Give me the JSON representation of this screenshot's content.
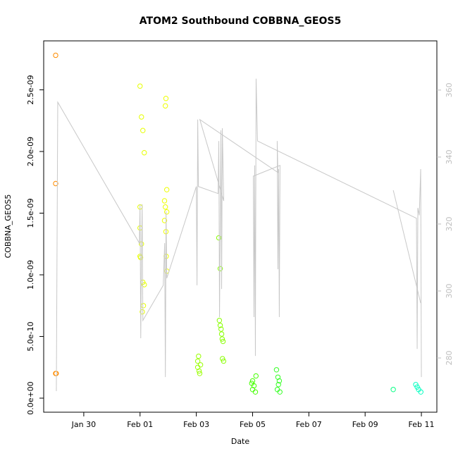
{
  "chart_data": {
    "type": "scatter",
    "title": "ATOM2 Southbound COBBNA_GEOS5",
    "x_label": "Date",
    "y_label": "COBBNA_GEOS5",
    "xlim": [
      28.575,
      42.55
    ],
    "xticks": [
      {
        "value": 30,
        "label": "Jan 30"
      },
      {
        "value": 32,
        "label": "Feb 01"
      },
      {
        "value": 34,
        "label": "Feb 03"
      },
      {
        "value": 36,
        "label": "Feb 05"
      },
      {
        "value": 38,
        "label": "Feb 07"
      },
      {
        "value": 40,
        "label": "Feb 09"
      },
      {
        "value": 42,
        "label": "Feb 11"
      }
    ],
    "ylim": [
      -1.14e-10,
      2.897e-09
    ],
    "yticks": [
      {
        "value": 0,
        "label": "0.0e+00"
      },
      {
        "value": 5e-10,
        "label": "5.0e-10"
      },
      {
        "value": 1e-09,
        "label": "1.0e-09"
      },
      {
        "value": 1.5e-09,
        "label": "1.5e-09"
      },
      {
        "value": 2e-09,
        "label": "2.0e-09"
      },
      {
        "value": 2.5e-09,
        "label": "2.5e-09"
      }
    ],
    "y2lim": [
      263.8,
      374.7
    ],
    "y2ticks": [
      280,
      300,
      320,
      340,
      360
    ],
    "series": [
      {
        "color": "#ff8c00",
        "x": [
          29.0,
          29.0,
          29.0,
          29.02
        ],
        "values": [
          2.78e-09,
          1.74e-09,
          2e-10,
          2e-10
        ]
      },
      {
        "color": "#e6ff00",
        "x": [
          32.0,
          32.05,
          32.1,
          32.15,
          32.0,
          32.0,
          32.05,
          32.0,
          32.02,
          32.1,
          32.15,
          32.12,
          32.08
        ],
        "values": [
          2.53e-09,
          2.28e-09,
          2.17e-09,
          1.99e-09,
          1.55e-09,
          1.38e-09,
          1.25e-09,
          1.15e-09,
          1.14e-09,
          9.4e-10,
          9.2e-10,
          7.5e-10,
          7e-10
        ]
      },
      {
        "color": "#eeff00",
        "x": [
          32.92,
          32.9,
          32.95,
          32.87,
          32.9,
          32.95,
          32.87,
          32.92,
          32.93,
          32.95
        ],
        "values": [
          2.43e-09,
          2.37e-09,
          1.69e-09,
          1.6e-09,
          1.55e-09,
          1.51e-09,
          1.44e-09,
          1.35e-09,
          1.15e-09,
          1.03e-09
        ]
      },
      {
        "color": "#99ff00",
        "x": [
          34.08,
          34.05,
          34.15,
          34.05,
          34.1,
          34.12
        ],
        "values": [
          3.4e-10,
          3e-10,
          2.7e-10,
          2.5e-10,
          2.2e-10,
          2e-10
        ]
      },
      {
        "color": "#88ff00",
        "x": [
          34.8,
          34.85,
          34.82,
          34.85,
          34.88,
          34.9,
          34.92,
          34.95,
          34.93,
          34.97
        ],
        "values": [
          1.3e-09,
          1.05e-09,
          6.3e-10,
          5.9e-10,
          5.6e-10,
          5.2e-10,
          4.8e-10,
          4.6e-10,
          3.2e-10,
          3e-10
        ]
      },
      {
        "color": "#44ff00",
        "x": [
          36.0,
          35.97,
          36.05,
          36.0,
          36.1,
          36.12
        ],
        "values": [
          1.4e-10,
          1.2e-10,
          1e-10,
          7e-11,
          5e-11,
          1.8e-10
        ]
      },
      {
        "color": "#33ff22",
        "x": [
          36.85,
          36.9,
          36.95,
          36.92,
          36.88,
          36.97
        ],
        "values": [
          2.3e-10,
          1.7e-10,
          1.4e-10,
          1.1e-10,
          7e-11,
          5e-11
        ]
      },
      {
        "color": "#00ff80",
        "x": [
          41.0
        ],
        "values": [
          7e-11
        ]
      },
      {
        "color": "#00ffc0",
        "x": [
          41.8,
          41.85,
          41.9,
          41.98
        ],
        "values": [
          1.1e-10,
          9e-11,
          7e-11,
          5e-11
        ]
      },
      {
        "color": "#c8c8c8",
        "axis": "y2",
        "kind": "line",
        "x": [
          29.025,
          29.075,
          31.975,
          32.0,
          32.025,
          32.05,
          32.075,
          32.1,
          32.825,
          32.875,
          32.9,
          32.925,
          32.95,
          34.0,
          34.025,
          34.05,
          34.075,
          34.775,
          34.8,
          34.825,
          34.875,
          34.9,
          34.925,
          34.975,
          34.125,
          36.9,
          36.875,
          36.9,
          36.925,
          36.95,
          36.975,
          36.025,
          36.05,
          36.075,
          36.1,
          36.125,
          36.175,
          41.825,
          41.85,
          41.875,
          41.925,
          41.975,
          42.0,
          null,
          41.0,
          41.975
        ],
        "values": [
          270.1,
          356.4,
          314.3,
          325.9,
          285.9,
          309.1,
          325.9,
          291.2,
          301.7,
          314.3,
          274.3,
          323.8,
          303.8,
          331.2,
          301.7,
          351.2,
          331.2,
          329.1,
          344.8,
          292.2,
          348.0,
          300.6,
          348.6,
          326.9,
          351.2,
          335.4,
          344.8,
          306.5,
          336.4,
          292.2,
          337.5,
          334.3,
          292.2,
          337.5,
          280.6,
          363.4,
          344.8,
          321.7,
          282.7,
          324.8,
          322.6,
          336.4,
          274.3,
          null,
          330.1,
          296.4
        ]
      }
    ]
  }
}
